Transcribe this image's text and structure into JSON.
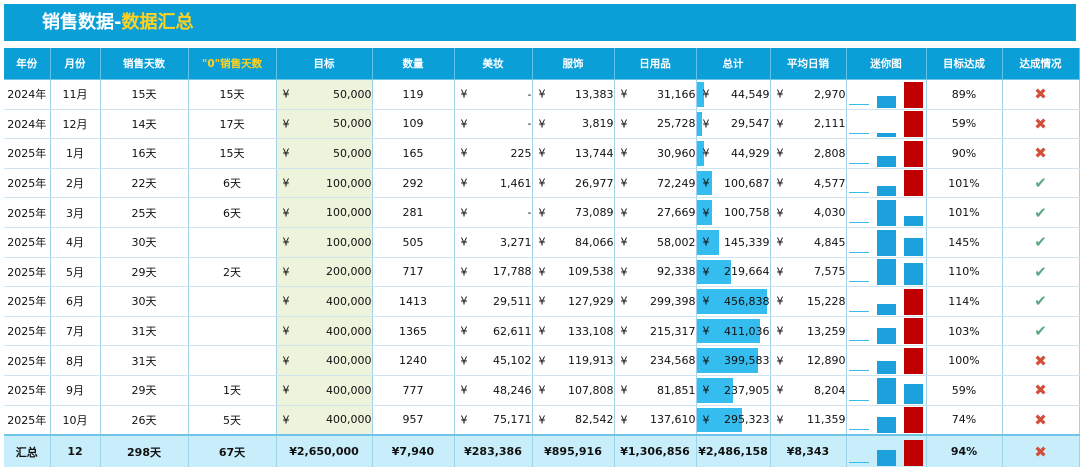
{
  "title": {
    "part1": "销售数据-",
    "part2": "数据汇总"
  },
  "colors": {
    "header_bg": "#0b9fd8",
    "accent_yellow": "#ffd21f",
    "bar_blue": "#35bdf0",
    "bar_red": "#c00000",
    "target_bg": "#eef3dc",
    "total_bg": "#c9eefb"
  },
  "headers": [
    "年份",
    "月份",
    "销售天数",
    "\"0\"销售天数",
    "目标",
    "数量",
    "美妆",
    "服饰",
    "日用品",
    "总计",
    "平均日销",
    "迷你图",
    "目标达成",
    "达成情况"
  ],
  "currency": "¥",
  "rows": [
    {
      "year": "2024年",
      "month": "11月",
      "days": "15天",
      "zero_days": "15天",
      "target": "50,000",
      "qty": "119",
      "beauty": "-",
      "apparel": "13,383",
      "daily": "31,166",
      "total": "44,549",
      "total_value": 44549,
      "avg": "2,970",
      "mini": [
        0.45,
        1.0
      ],
      "rate": "89%",
      "achieved": false
    },
    {
      "year": "2024年",
      "month": "12月",
      "days": "14天",
      "zero_days": "17天",
      "target": "50,000",
      "qty": "109",
      "beauty": "-",
      "apparel": "3,819",
      "daily": "25,728",
      "total": "29,547",
      "total_value": 29547,
      "avg": "2,111",
      "mini": [
        0.15,
        1.0
      ],
      "rate": "59%",
      "achieved": false
    },
    {
      "year": "2025年",
      "month": "1月",
      "days": "16天",
      "zero_days": "15天",
      "target": "50,000",
      "qty": "165",
      "beauty": "225",
      "apparel": "13,744",
      "daily": "30,960",
      "total": "44,929",
      "total_value": 44929,
      "avg": "2,808",
      "mini": [
        0.44,
        1.0
      ],
      "rate": "90%",
      "achieved": false
    },
    {
      "year": "2025年",
      "month": "2月",
      "days": "22天",
      "zero_days": "6天",
      "target": "100,000",
      "qty": "292",
      "beauty": "1,461",
      "apparel": "26,977",
      "daily": "72,249",
      "total": "100,687",
      "total_value": 100687,
      "avg": "4,577",
      "mini": [
        0.37,
        1.0
      ],
      "rate": "101%",
      "achieved": true
    },
    {
      "year": "2025年",
      "month": "3月",
      "days": "25天",
      "zero_days": "6天",
      "target": "100,000",
      "qty": "281",
      "beauty": "-",
      "apparel": "73,089",
      "daily": "27,669",
      "total": "100,758",
      "total_value": 100758,
      "avg": "4,030",
      "mini": [
        1.0,
        0.38
      ],
      "rate": "101%",
      "achieved": true
    },
    {
      "year": "2025年",
      "month": "4月",
      "days": "30天",
      "zero_days": "",
      "target": "100,000",
      "qty": "505",
      "beauty": "3,271",
      "apparel": "84,066",
      "daily": "58,002",
      "total": "145,339",
      "total_value": 145339,
      "avg": "4,845",
      "mini": [
        1.0,
        0.69
      ],
      "rate": "145%",
      "achieved": true
    },
    {
      "year": "2025年",
      "month": "5月",
      "days": "29天",
      "zero_days": "2天",
      "target": "200,000",
      "qty": "717",
      "beauty": "17,788",
      "apparel": "109,538",
      "daily": "92,338",
      "total": "219,664",
      "total_value": 219664,
      "avg": "7,575",
      "mini": [
        1.0,
        0.84
      ],
      "rate": "110%",
      "achieved": true
    },
    {
      "year": "2025年",
      "month": "6月",
      "days": "30天",
      "zero_days": "",
      "target": "400,000",
      "qty": "1413",
      "beauty": "29,511",
      "apparel": "127,929",
      "daily": "299,398",
      "total": "456,838",
      "total_value": 456838,
      "avg": "15,228",
      "mini": [
        0.43,
        1.0
      ],
      "rate": "114%",
      "achieved": true
    },
    {
      "year": "2025年",
      "month": "7月",
      "days": "31天",
      "zero_days": "",
      "target": "400,000",
      "qty": "1365",
      "beauty": "62,611",
      "apparel": "133,108",
      "daily": "215,317",
      "total": "411,036",
      "total_value": 411036,
      "avg": "13,259",
      "mini": [
        0.62,
        1.0
      ],
      "rate": "103%",
      "achieved": true
    },
    {
      "year": "2025年",
      "month": "8月",
      "days": "31天",
      "zero_days": "",
      "target": "400,000",
      "qty": "1240",
      "beauty": "45,102",
      "apparel": "119,913",
      "daily": "234,568",
      "total": "399,583",
      "total_value": 399583,
      "avg": "12,890",
      "mini": [
        0.51,
        1.0
      ],
      "rate": "100%",
      "achieved": false
    },
    {
      "year": "2025年",
      "month": "9月",
      "days": "29天",
      "zero_days": "1天",
      "target": "400,000",
      "qty": "777",
      "beauty": "48,246",
      "apparel": "107,808",
      "daily": "81,851",
      "total": "237,905",
      "total_value": 237905,
      "avg": "8,204",
      "mini": [
        1.0,
        0.76
      ],
      "rate": "59%",
      "achieved": false
    },
    {
      "year": "2025年",
      "month": "10月",
      "days": "26天",
      "zero_days": "5天",
      "target": "400,000",
      "qty": "957",
      "beauty": "75,171",
      "apparel": "82,542",
      "daily": "137,610",
      "total": "295,323",
      "total_value": 295323,
      "avg": "11,359",
      "mini": [
        0.6,
        1.0
      ],
      "rate": "74%",
      "achieved": false
    }
  ],
  "summary": {
    "label": "汇总",
    "months": "12",
    "days": "298天",
    "zero_days": "67天",
    "target": "¥2,650,000",
    "qty": "¥7,940",
    "beauty": "¥283,386",
    "apparel": "¥895,916",
    "daily": "¥1,306,856",
    "total": "¥2,486,158",
    "avg": "¥8,343",
    "mini": [
      0.61,
      1.0
    ],
    "rate": "94%",
    "achieved": false
  },
  "icons": {
    "achieved": "check-icon",
    "missed": "cross-icon"
  }
}
